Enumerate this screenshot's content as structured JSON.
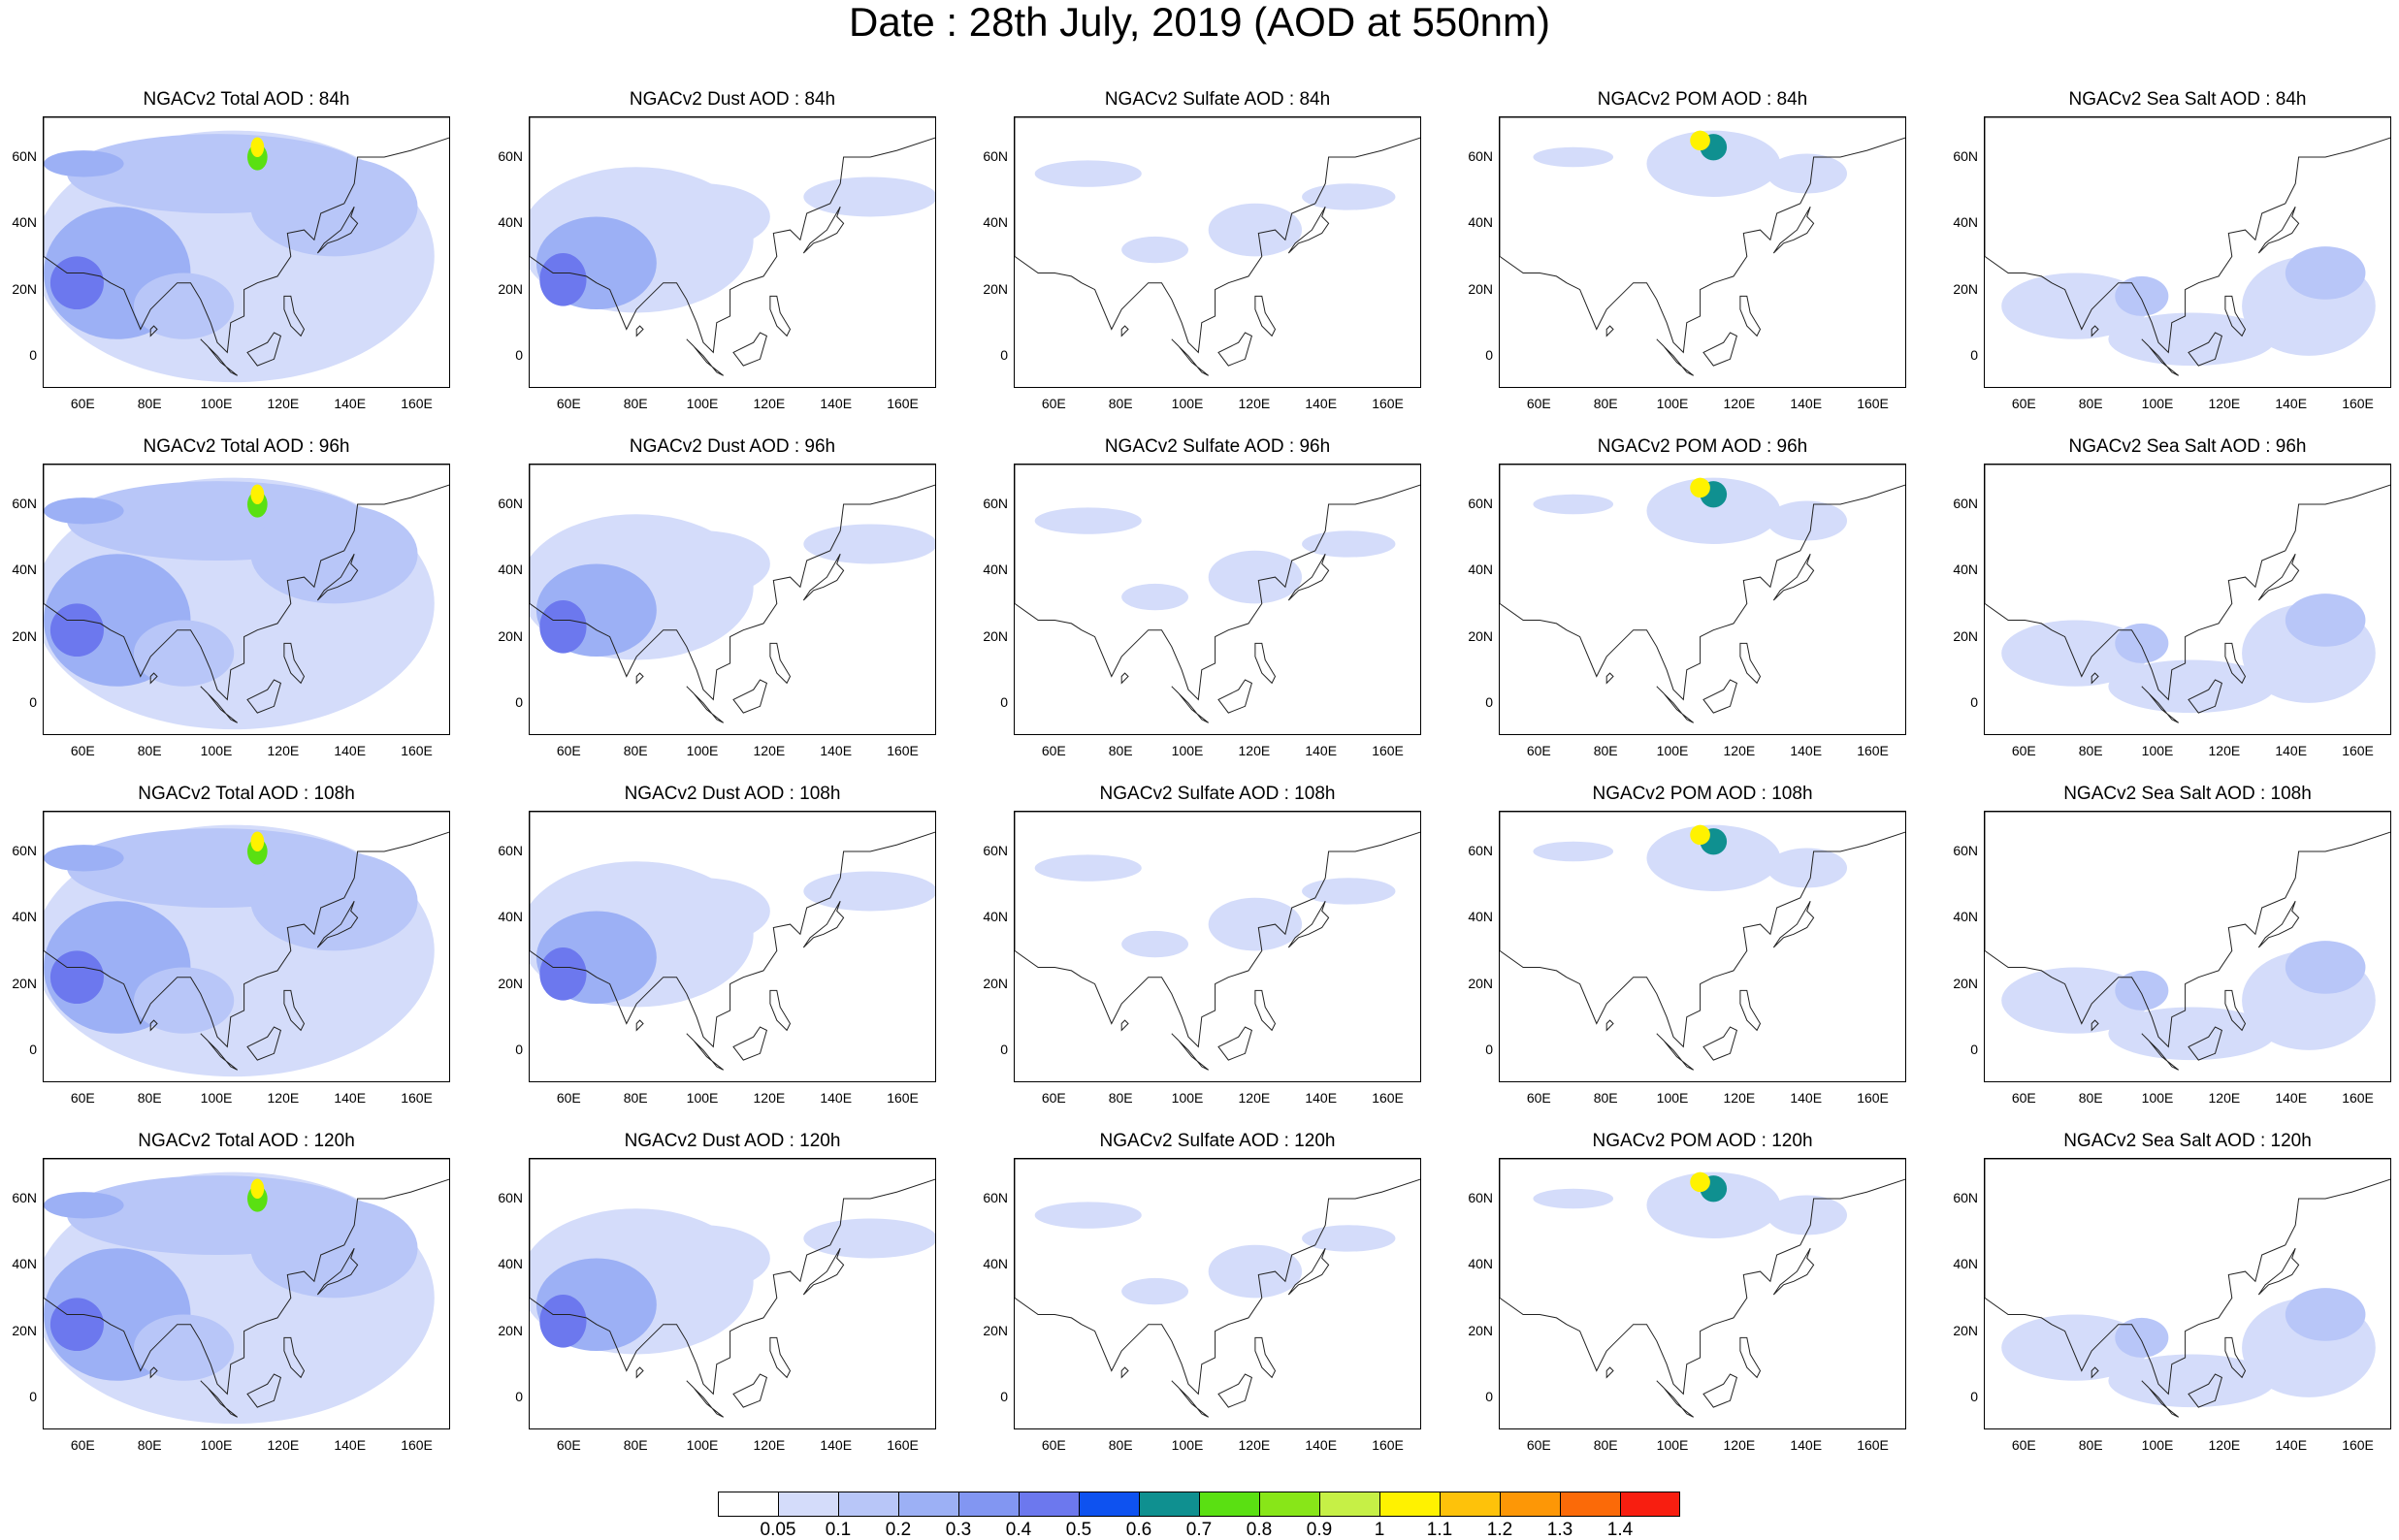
{
  "title": "Date : 28th July, 2019 (AOD at 550nm)",
  "axes": {
    "lat_ticks": [
      "60N",
      "40N",
      "20N",
      "0"
    ],
    "lon_ticks": [
      "60E",
      "80E",
      "100E",
      "120E",
      "140E",
      "160E"
    ]
  },
  "panels": [
    [
      {
        "title": "NGACv2 Total AOD : 84h",
        "species": "total"
      },
      {
        "title": "NGACv2 Dust AOD : 84h",
        "species": "dust"
      },
      {
        "title": "NGACv2 Sulfate AOD : 84h",
        "species": "sulfate"
      },
      {
        "title": "NGACv2 POM AOD : 84h",
        "species": "pom"
      },
      {
        "title": "NGACv2 Sea Salt AOD : 84h",
        "species": "seasalt"
      }
    ],
    [
      {
        "title": "NGACv2 Total AOD : 96h",
        "species": "total"
      },
      {
        "title": "NGACv2 Dust AOD : 96h",
        "species": "dust"
      },
      {
        "title": "NGACv2 Sulfate AOD : 96h",
        "species": "sulfate"
      },
      {
        "title": "NGACv2 POM AOD : 96h",
        "species": "pom"
      },
      {
        "title": "NGACv2 Sea Salt AOD : 96h",
        "species": "seasalt"
      }
    ],
    [
      {
        "title": "NGACv2 Total AOD : 108h",
        "species": "total"
      },
      {
        "title": "NGACv2 Dust AOD : 108h",
        "species": "dust"
      },
      {
        "title": "NGACv2 Sulfate AOD : 108h",
        "species": "sulfate"
      },
      {
        "title": "NGACv2 POM AOD : 108h",
        "species": "pom"
      },
      {
        "title": "NGACv2 Sea Salt AOD : 108h",
        "species": "seasalt"
      }
    ],
    [
      {
        "title": "NGACv2 Total AOD : 120h",
        "species": "total"
      },
      {
        "title": "NGACv2 Dust AOD : 120h",
        "species": "dust"
      },
      {
        "title": "NGACv2 Sulfate AOD : 120h",
        "species": "sulfate"
      },
      {
        "title": "NGACv2 POM AOD : 120h",
        "species": "pom"
      },
      {
        "title": "NGACv2 Sea Salt  AOD : 120h",
        "species": "seasalt"
      }
    ]
  ],
  "colorbar": {
    "labels": [
      "0.05",
      "0.1",
      "0.2",
      "0.3",
      "0.4",
      "0.5",
      "0.6",
      "0.7",
      "0.8",
      "0.9",
      "1",
      "1.1",
      "1.2",
      "1.3",
      "1.4"
    ],
    "colors": [
      "#ffffff",
      "#d4dcfa",
      "#b8c6f8",
      "#9cb0f5",
      "#8296f2",
      "#6c78ee",
      "#0e52f0",
      "#0f9090",
      "#5ae012",
      "#88e618",
      "#c6f046",
      "#fff200",
      "#fec20a",
      "#fd9706",
      "#fb6a08",
      "#f81e10"
    ]
  }
}
